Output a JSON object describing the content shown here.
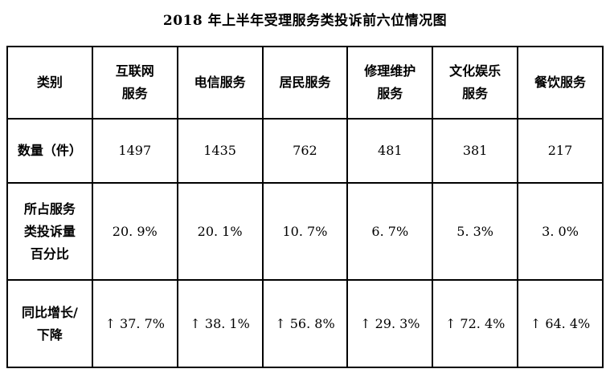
{
  "title": "2018 年上半年受理服务类投诉前六位情况图",
  "table": {
    "corner_label": "类别",
    "columns": [
      "互联网\n服务",
      "电信服务",
      "居民服务",
      "修理维护\n服务",
      "文化娱乐\n服务",
      "餐饮服务"
    ],
    "rows": [
      {
        "label": "数量（件）",
        "values": [
          "1497",
          "1435",
          "762",
          "481",
          "381",
          "217"
        ]
      },
      {
        "label": "所占服务\n类投诉量\n百分比",
        "values": [
          "20. 9%",
          "20. 1%",
          "10. 7%",
          "6. 7%",
          "5. 3%",
          "3. 0%"
        ]
      },
      {
        "label": "同比增长/\n下降",
        "values": [
          "↑ 37. 7%",
          "↑ 38. 1%",
          "↑ 56. 8%",
          "↑ 29. 3%",
          "↑ 72. 4%",
          "↑ 64. 4%"
        ]
      }
    ]
  }
}
